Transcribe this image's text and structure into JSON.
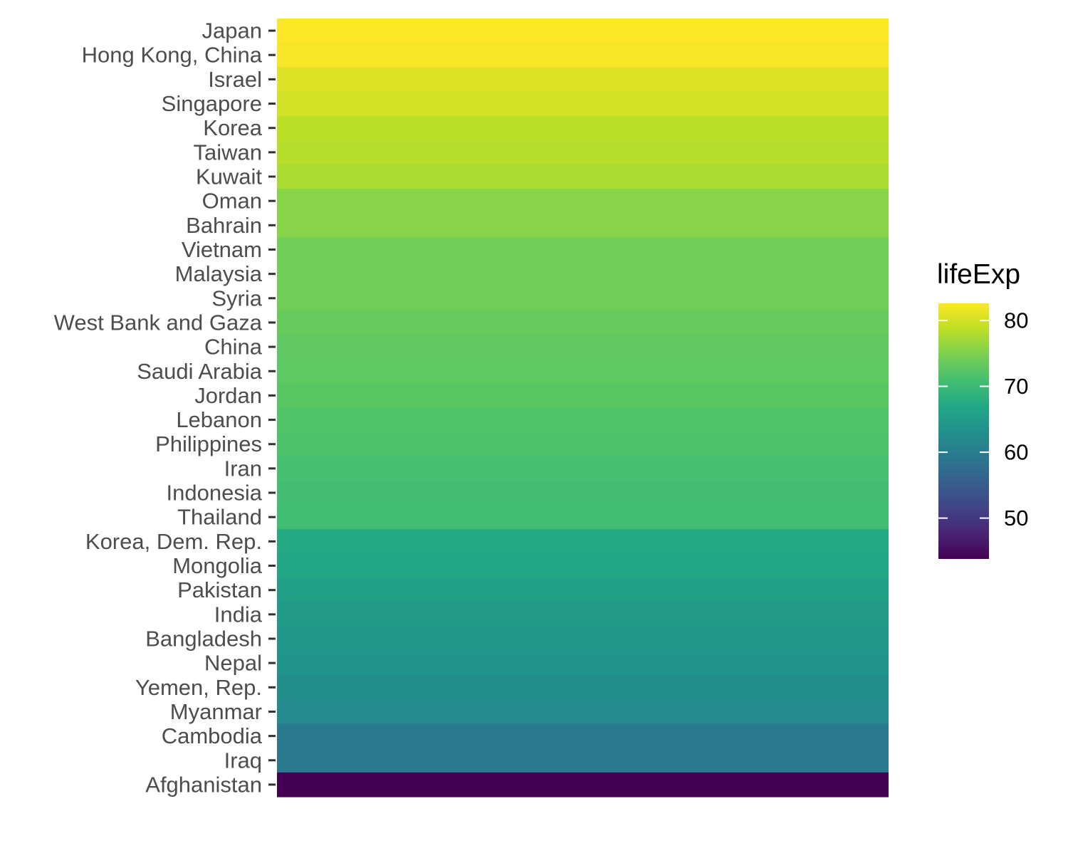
{
  "chart_data": {
    "type": "heatmap",
    "title": "",
    "xlabel": "",
    "ylabel": "",
    "categories": [
      "Japan",
      "Hong Kong, China",
      "Israel",
      "Singapore",
      "Korea",
      "Taiwan",
      "Kuwait",
      "Oman",
      "Bahrain",
      "Vietnam",
      "Malaysia",
      "Syria",
      "West Bank and Gaza",
      "China",
      "Saudi Arabia",
      "Jordan",
      "Lebanon",
      "Philippines",
      "Iran",
      "Indonesia",
      "Thailand",
      "Korea, Dem. Rep.",
      "Mongolia",
      "Pakistan",
      "India",
      "Bangladesh",
      "Nepal",
      "Yemen, Rep.",
      "Myanmar",
      "Cambodia",
      "Iraq",
      "Afghanistan"
    ],
    "series": [
      {
        "values": [
          82.6,
          82.2,
          80.7,
          80.0,
          78.6,
          78.4,
          77.6,
          75.6,
          75.6,
          74.2,
          74.2,
          74.1,
          73.4,
          73.0,
          72.8,
          72.5,
          72.0,
          71.7,
          71.0,
          70.7,
          70.6,
          67.3,
          66.8,
          65.5,
          64.7,
          64.1,
          63.8,
          62.7,
          62.1,
          59.7,
          59.5,
          43.8
        ]
      }
    ],
    "colorbar": {
      "title": "lifeExp",
      "ticks": [
        50,
        60,
        70,
        80
      ],
      "tick_labels": [
        "50",
        "60",
        "70",
        "80"
      ],
      "range": [
        43.8,
        82.6
      ],
      "palette": "viridis"
    },
    "grid": false,
    "legend_position": "right"
  }
}
